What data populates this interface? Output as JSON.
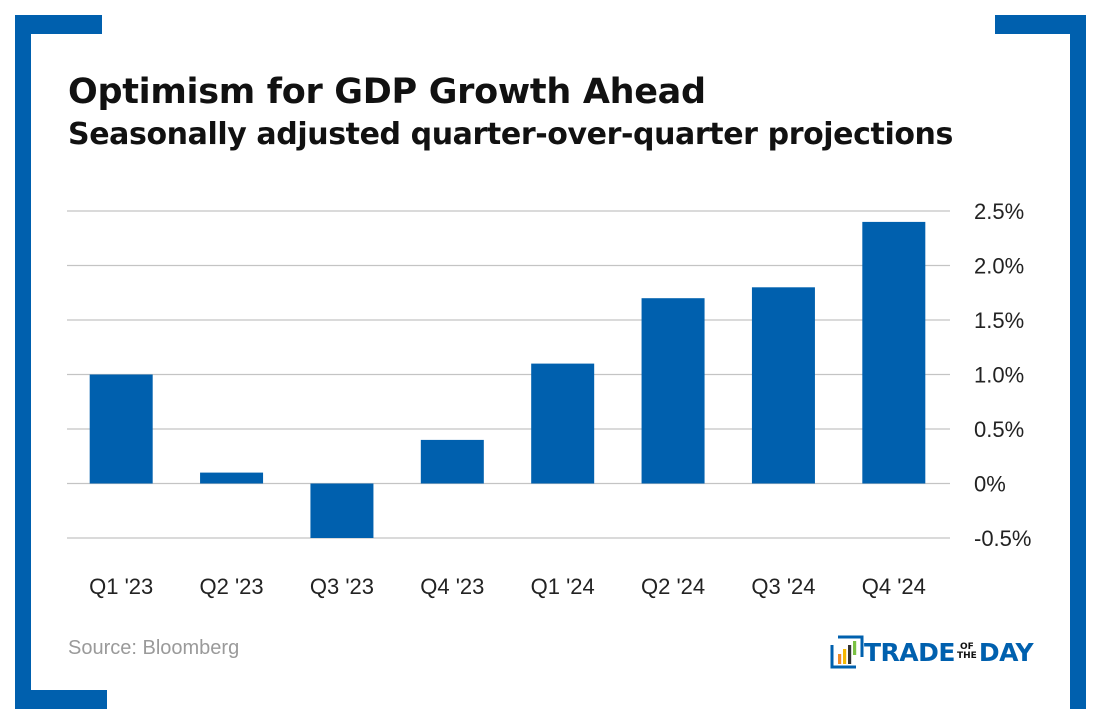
{
  "header": {
    "title": "Optimism for GDP Growth Ahead",
    "subtitle": "Seasonally adjusted quarter-over-quarter projections"
  },
  "footer": {
    "source": "Source: Bloomberg",
    "logo": {
      "icon": "bar-chart-icon",
      "word1": "TRADE",
      "small_top": "OF",
      "small_bottom": "THE",
      "word2": "DAY"
    }
  },
  "colors": {
    "brand": "#0060ae",
    "bar": "#0060ae",
    "grid": "#c4c4c4",
    "text": "#111111",
    "source": "#9a9a9a",
    "logo_bars": [
      "#f08a24",
      "#f5b800",
      "#333333",
      "#7ac143"
    ]
  },
  "chart_data": {
    "type": "bar",
    "title": "Optimism for GDP Growth Ahead",
    "subtitle": "Seasonally adjusted quarter-over-quarter projections",
    "xlabel": "",
    "ylabel": "",
    "categories": [
      "Q1 '23",
      "Q2 '23",
      "Q3 '23",
      "Q4 '23",
      "Q1 '24",
      "Q2 '24",
      "Q3 '24",
      "Q4 '24"
    ],
    "values": [
      1.0,
      0.1,
      -0.5,
      0.4,
      1.1,
      1.7,
      1.8,
      2.4
    ],
    "unit": "%",
    "ylim": [
      -0.5,
      2.5
    ],
    "yticks": [
      2.5,
      2.0,
      1.5,
      1.0,
      0.5,
      0,
      -0.5
    ],
    "ytick_labels": [
      "2.5%",
      "2.0%",
      "1.5%",
      "1.0%",
      "0.5%",
      "0%",
      "-0.5%"
    ],
    "y_axis_side": "right",
    "grid": true,
    "legend": "none",
    "source": "Bloomberg"
  }
}
